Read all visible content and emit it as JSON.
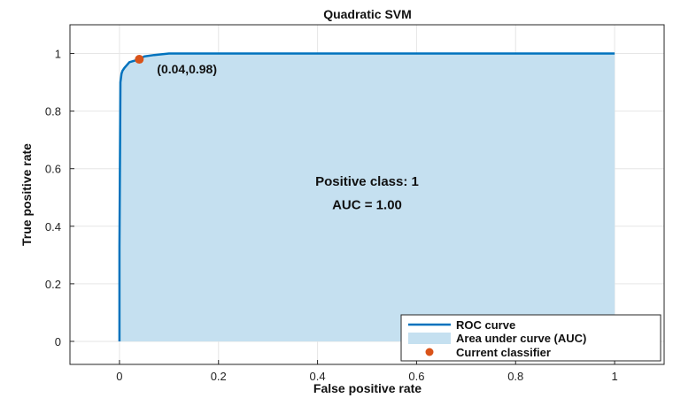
{
  "chart_data": {
    "type": "line",
    "title": "Quadratic SVM",
    "xlabel": "False positive rate",
    "ylabel": "True positive rate",
    "xlim": [
      -0.1,
      1.1
    ],
    "ylim": [
      -0.08,
      1.1
    ],
    "xticks": [
      0,
      0.2,
      0.4,
      0.6,
      0.8,
      1
    ],
    "xtick_labels": [
      "0",
      "0.2",
      "0.4",
      "0.6",
      "0.8",
      "1"
    ],
    "yticks": [
      0,
      0.2,
      0.4,
      0.6,
      0.8,
      1
    ],
    "ytick_labels": [
      "0",
      "0.2",
      "0.4",
      "0.6",
      "0.8",
      "1"
    ],
    "grid": true,
    "legend_position": "bottom-right",
    "series": [
      {
        "name": "ROC curve",
        "color": "#0072bd",
        "x": [
          0,
          0,
          0.002,
          0.004,
          0.006,
          0.01,
          0.015,
          0.02,
          0.03,
          0.04,
          0.05,
          0.07,
          0.1,
          1
        ],
        "y": [
          0,
          0.33,
          0.9,
          0.93,
          0.94,
          0.95,
          0.96,
          0.97,
          0.975,
          0.98,
          0.99,
          0.995,
          1,
          1
        ]
      },
      {
        "name": "Area under curve (AUC)",
        "color": "#c5e0f0"
      },
      {
        "name": "Current classifier",
        "color": "#d95319",
        "x": [
          0.04
        ],
        "y": [
          0.98
        ]
      }
    ],
    "annotations": {
      "point_label": "(0.04,0.98)",
      "positive_class": "Positive class: 1",
      "auc": "AUC = 1.00"
    }
  }
}
